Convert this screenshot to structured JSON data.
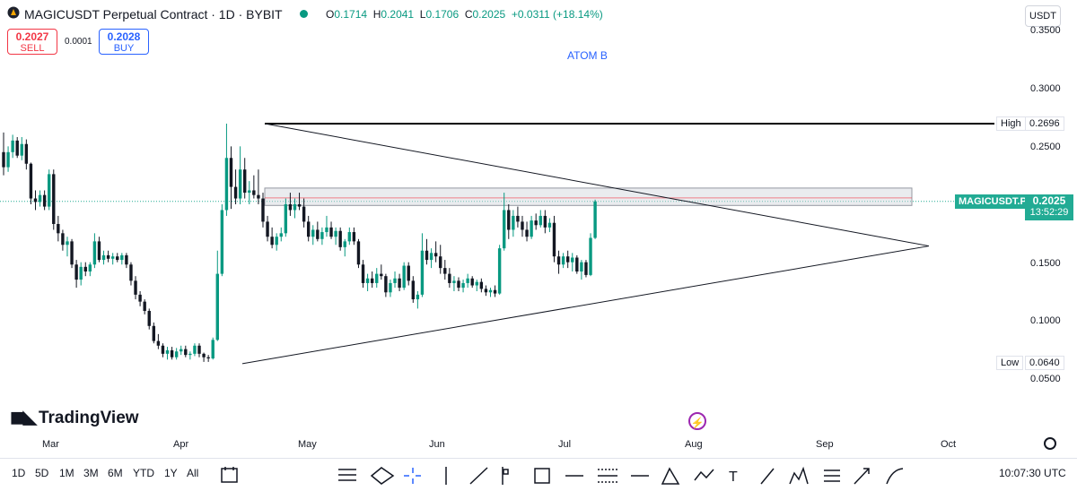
{
  "header": {
    "title": "MAGICUSDT Perpetual Contract · 1D · BYBIT",
    "ohlc": [
      {
        "k": "O",
        "v": "0.1714"
      },
      {
        "k": "H",
        "v": "0.2041"
      },
      {
        "k": "L",
        "v": "0.1706"
      },
      {
        "k": "C",
        "v": "0.2025"
      }
    ],
    "change": "+0.0311 (+18.14%)",
    "currency": "USDT"
  },
  "trade": {
    "sell_price": "0.2027",
    "sell_label": "SELL",
    "spread": "0.0001",
    "buy_price": "0.2028",
    "buy_label": "BUY"
  },
  "annotation": "ATOM B",
  "price_axis": [
    "0.3500",
    "0.3000",
    "0.2500",
    "0.1500",
    "0.1000",
    "0.0500"
  ],
  "markers": {
    "high_label": "High",
    "high_value": "0.2696",
    "low_label": "Low",
    "low_value": "0.0640",
    "symbol_tag": "MAGICUSDT.P",
    "last_price": "0.2025",
    "countdown": "13:52:29"
  },
  "time_axis": [
    "Mar",
    "Apr",
    "May",
    "Jun",
    "Jul",
    "Aug",
    "Sep",
    "Oct"
  ],
  "logo": "TradingView",
  "bottom_bar": {
    "ranges": [
      "1D",
      "5D",
      "1M",
      "3M",
      "6M",
      "YTD",
      "1Y",
      "All"
    ],
    "clock": "10:07:30 UTC"
  },
  "colors": {
    "up": "#089981",
    "down": "#131722",
    "accent": "#2962ff",
    "last": "#22ab94"
  },
  "chart_data": {
    "type": "candlestick",
    "ylim": [
      0.03,
      0.36
    ],
    "price_levels": {
      "high": 0.2696,
      "low": 0.064,
      "last": 0.2025
    },
    "resistance_zone": [
      0.199,
      0.214
    ],
    "triangle": {
      "upper": [
        [
          55,
          0.2696
        ],
        [
          262,
          0.164
        ]
      ],
      "lower": [
        [
          48,
          0.064
        ],
        [
          262,
          0.164
        ]
      ]
    },
    "candles_ohlc": [
      [
        0.245,
        0.262,
        0.225,
        0.232
      ],
      [
        0.232,
        0.25,
        0.228,
        0.245
      ],
      [
        0.245,
        0.26,
        0.24,
        0.255
      ],
      [
        0.255,
        0.258,
        0.24,
        0.242
      ],
      [
        0.242,
        0.258,
        0.238,
        0.252
      ],
      [
        0.252,
        0.256,
        0.23,
        0.235
      ],
      [
        0.235,
        0.236,
        0.2,
        0.205
      ],
      [
        0.205,
        0.212,
        0.195,
        0.202
      ],
      [
        0.202,
        0.212,
        0.198,
        0.208
      ],
      [
        0.208,
        0.212,
        0.195,
        0.198
      ],
      [
        0.198,
        0.23,
        0.195,
        0.226
      ],
      [
        0.226,
        0.23,
        0.178,
        0.183
      ],
      [
        0.183,
        0.19,
        0.168,
        0.175
      ],
      [
        0.175,
        0.178,
        0.16,
        0.165
      ],
      [
        0.165,
        0.172,
        0.155,
        0.168
      ],
      [
        0.168,
        0.17,
        0.145,
        0.148
      ],
      [
        0.148,
        0.152,
        0.128,
        0.135
      ],
      [
        0.135,
        0.15,
        0.13,
        0.146
      ],
      [
        0.146,
        0.15,
        0.138,
        0.142
      ],
      [
        0.142,
        0.15,
        0.138,
        0.148
      ],
      [
        0.148,
        0.175,
        0.145,
        0.168
      ],
      [
        0.168,
        0.172,
        0.15,
        0.152
      ],
      [
        0.152,
        0.16,
        0.148,
        0.156
      ],
      [
        0.156,
        0.16,
        0.15,
        0.153
      ],
      [
        0.153,
        0.158,
        0.148,
        0.155
      ],
      [
        0.155,
        0.158,
        0.15,
        0.152
      ],
      [
        0.152,
        0.158,
        0.148,
        0.156
      ],
      [
        0.156,
        0.158,
        0.145,
        0.148
      ],
      [
        0.148,
        0.15,
        0.13,
        0.134
      ],
      [
        0.134,
        0.138,
        0.118,
        0.122
      ],
      [
        0.122,
        0.125,
        0.112,
        0.116
      ],
      [
        0.116,
        0.118,
        0.105,
        0.108
      ],
      [
        0.108,
        0.11,
        0.092,
        0.095
      ],
      [
        0.095,
        0.098,
        0.08,
        0.082
      ],
      [
        0.082,
        0.088,
        0.075,
        0.078
      ],
      [
        0.078,
        0.08,
        0.068,
        0.071
      ],
      [
        0.071,
        0.077,
        0.066,
        0.074
      ],
      [
        0.074,
        0.077,
        0.066,
        0.068
      ],
      [
        0.068,
        0.076,
        0.066,
        0.073
      ],
      [
        0.073,
        0.078,
        0.07,
        0.075
      ],
      [
        0.075,
        0.078,
        0.068,
        0.07
      ],
      [
        0.07,
        0.073,
        0.066,
        0.071
      ],
      [
        0.071,
        0.08,
        0.069,
        0.078
      ],
      [
        0.078,
        0.08,
        0.068,
        0.071
      ],
      [
        0.071,
        0.072,
        0.064,
        0.068
      ],
      [
        0.068,
        0.07,
        0.064,
        0.067
      ],
      [
        0.067,
        0.085,
        0.066,
        0.083
      ],
      [
        0.083,
        0.16,
        0.082,
        0.14
      ],
      [
        0.14,
        0.2,
        0.138,
        0.195
      ],
      [
        0.195,
        0.2696,
        0.19,
        0.24
      ],
      [
        0.24,
        0.25,
        0.196,
        0.215
      ],
      [
        0.215,
        0.23,
        0.2,
        0.205
      ],
      [
        0.205,
        0.25,
        0.2,
        0.23
      ],
      [
        0.23,
        0.24,
        0.205,
        0.21
      ],
      [
        0.21,
        0.22,
        0.2,
        0.212
      ],
      [
        0.212,
        0.225,
        0.205,
        0.208
      ],
      [
        0.208,
        0.23,
        0.2,
        0.205
      ],
      [
        0.205,
        0.21,
        0.18,
        0.185
      ],
      [
        0.185,
        0.19,
        0.168,
        0.172
      ],
      [
        0.172,
        0.18,
        0.162,
        0.165
      ],
      [
        0.165,
        0.175,
        0.16,
        0.172
      ],
      [
        0.172,
        0.18,
        0.168,
        0.175
      ],
      [
        0.175,
        0.205,
        0.172,
        0.2
      ],
      [
        0.2,
        0.21,
        0.19,
        0.195
      ],
      [
        0.195,
        0.205,
        0.188,
        0.2
      ],
      [
        0.2,
        0.21,
        0.195,
        0.198
      ],
      [
        0.198,
        0.205,
        0.18,
        0.185
      ],
      [
        0.185,
        0.19,
        0.168,
        0.172
      ],
      [
        0.172,
        0.182,
        0.165,
        0.178
      ],
      [
        0.178,
        0.185,
        0.168,
        0.17
      ],
      [
        0.17,
        0.18,
        0.165,
        0.176
      ],
      [
        0.176,
        0.19,
        0.172,
        0.18
      ],
      [
        0.18,
        0.185,
        0.17,
        0.172
      ],
      [
        0.172,
        0.18,
        0.165,
        0.177
      ],
      [
        0.177,
        0.18,
        0.16,
        0.163
      ],
      [
        0.163,
        0.17,
        0.155,
        0.168
      ],
      [
        0.168,
        0.18,
        0.165,
        0.176
      ],
      [
        0.176,
        0.18,
        0.165,
        0.168
      ],
      [
        0.168,
        0.17,
        0.145,
        0.148
      ],
      [
        0.148,
        0.152,
        0.128,
        0.132
      ],
      [
        0.132,
        0.14,
        0.125,
        0.136
      ],
      [
        0.136,
        0.142,
        0.128,
        0.132
      ],
      [
        0.132,
        0.145,
        0.128,
        0.14
      ],
      [
        0.14,
        0.148,
        0.135,
        0.138
      ],
      [
        0.138,
        0.14,
        0.12,
        0.124
      ],
      [
        0.124,
        0.135,
        0.12,
        0.132
      ],
      [
        0.132,
        0.142,
        0.128,
        0.136
      ],
      [
        0.136,
        0.14,
        0.125,
        0.128
      ],
      [
        0.128,
        0.15,
        0.126,
        0.147
      ],
      [
        0.147,
        0.15,
        0.13,
        0.134
      ],
      [
        0.134,
        0.138,
        0.115,
        0.118
      ],
      [
        0.118,
        0.125,
        0.11,
        0.122
      ],
      [
        0.122,
        0.175,
        0.12,
        0.16
      ],
      [
        0.16,
        0.17,
        0.148,
        0.152
      ],
      [
        0.152,
        0.162,
        0.145,
        0.158
      ],
      [
        0.158,
        0.168,
        0.15,
        0.155
      ],
      [
        0.155,
        0.165,
        0.14,
        0.145
      ],
      [
        0.145,
        0.152,
        0.135,
        0.14
      ],
      [
        0.14,
        0.145,
        0.128,
        0.132
      ],
      [
        0.132,
        0.138,
        0.125,
        0.134
      ],
      [
        0.134,
        0.137,
        0.125,
        0.128
      ],
      [
        0.128,
        0.135,
        0.124,
        0.132
      ],
      [
        0.132,
        0.14,
        0.128,
        0.136
      ],
      [
        0.136,
        0.138,
        0.128,
        0.13
      ],
      [
        0.13,
        0.135,
        0.125,
        0.133
      ],
      [
        0.133,
        0.136,
        0.124,
        0.127
      ],
      [
        0.127,
        0.13,
        0.121,
        0.124
      ],
      [
        0.124,
        0.128,
        0.12,
        0.126
      ],
      [
        0.126,
        0.13,
        0.12,
        0.123
      ],
      [
        0.123,
        0.165,
        0.122,
        0.162
      ],
      [
        0.162,
        0.21,
        0.16,
        0.195
      ],
      [
        0.195,
        0.2,
        0.17,
        0.178
      ],
      [
        0.178,
        0.195,
        0.172,
        0.19
      ],
      [
        0.19,
        0.198,
        0.18,
        0.185
      ],
      [
        0.185,
        0.19,
        0.172,
        0.178
      ],
      [
        0.178,
        0.185,
        0.168,
        0.172
      ],
      [
        0.172,
        0.19,
        0.17,
        0.186
      ],
      [
        0.186,
        0.192,
        0.178,
        0.182
      ],
      [
        0.182,
        0.195,
        0.18,
        0.19
      ],
      [
        0.19,
        0.195,
        0.175,
        0.18
      ],
      [
        0.18,
        0.188,
        0.176,
        0.184
      ],
      [
        0.184,
        0.19,
        0.15,
        0.155
      ],
      [
        0.155,
        0.16,
        0.14,
        0.148
      ],
      [
        0.148,
        0.158,
        0.145,
        0.155
      ],
      [
        0.155,
        0.16,
        0.145,
        0.15
      ],
      [
        0.15,
        0.158,
        0.142,
        0.154
      ],
      [
        0.154,
        0.156,
        0.14,
        0.142
      ],
      [
        0.142,
        0.152,
        0.135,
        0.15
      ],
      [
        0.15,
        0.152,
        0.137,
        0.139
      ],
      [
        0.139,
        0.175,
        0.138,
        0.171
      ],
      [
        0.171,
        0.204,
        0.17,
        0.2025
      ]
    ]
  }
}
